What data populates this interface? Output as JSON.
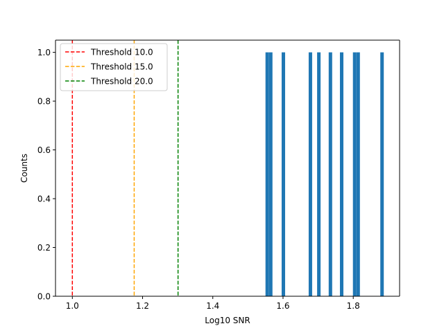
{
  "chart_data": {
    "type": "bar",
    "title": "",
    "xlabel": "Log10 SNR",
    "ylabel": "Counts",
    "xlim": [
      0.952,
      1.932
    ],
    "ylim": [
      0.0,
      1.05
    ],
    "grid": false,
    "bar_color": "#1f77b4",
    "bar_width": 0.0099,
    "x_ticks": [
      1.0,
      1.2,
      1.4,
      1.6,
      1.8
    ],
    "x_tick_labels": [
      "1.0",
      "1.2",
      "1.4",
      "1.6",
      "1.8"
    ],
    "y_ticks": [
      0.0,
      0.2,
      0.4,
      0.6,
      0.8,
      1.0
    ],
    "y_tick_labels": [
      "0.0",
      "0.2",
      "0.4",
      "0.6",
      "0.8",
      "1.0"
    ],
    "bars": [
      {
        "x": 1.555,
        "count": 1.0
      },
      {
        "x": 1.565,
        "count": 1.0
      },
      {
        "x": 1.601,
        "count": 1.0
      },
      {
        "x": 1.678,
        "count": 1.0
      },
      {
        "x": 1.702,
        "count": 1.0
      },
      {
        "x": 1.735,
        "count": 1.0
      },
      {
        "x": 1.767,
        "count": 1.0
      },
      {
        "x": 1.804,
        "count": 1.0
      },
      {
        "x": 1.814,
        "count": 1.0
      },
      {
        "x": 1.882,
        "count": 1.0
      }
    ],
    "thresholds": [
      {
        "name": "Threshold 10.0",
        "x": 1.0,
        "color": "#ff0000"
      },
      {
        "name": "Threshold 15.0",
        "x": 1.1761,
        "color": "#ffa500"
      },
      {
        "name": "Threshold 20.0",
        "x": 1.301,
        "color": "#008000"
      }
    ],
    "legend_position": "top-left"
  }
}
